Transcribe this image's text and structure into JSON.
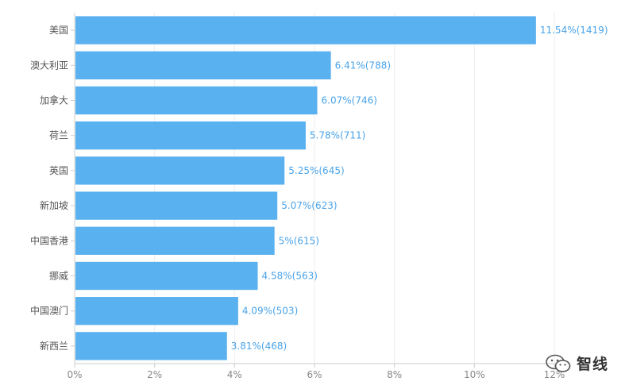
{
  "chart_data": {
    "type": "bar",
    "orientation": "horizontal",
    "categories": [
      "美国",
      "澳大利亚",
      "加拿大",
      "荷兰",
      "英国",
      "新加坡",
      "中国香港",
      "挪威",
      "中国澳门",
      "新西兰"
    ],
    "values": [
      11.54,
      6.41,
      6.07,
      5.78,
      5.25,
      5.07,
      5,
      4.58,
      4.09,
      3.81
    ],
    "counts": [
      1419,
      788,
      746,
      711,
      645,
      623,
      615,
      563,
      503,
      468
    ],
    "data_labels": [
      "11.54%(1419)",
      "6.41%(788)",
      "6.07%(746)",
      "5.78%(711)",
      "5.25%(645)",
      "5.07%(623)",
      "5%(615)",
      "4.58%(563)",
      "4.09%(503)",
      "3.81%(468)"
    ],
    "x_ticks": [
      "0%",
      "2%",
      "4%",
      "6%",
      "8%",
      "10%",
      "12%"
    ],
    "xlim": [
      0,
      12
    ],
    "grid": true,
    "bar_color": "#5ab1ef",
    "label_color": "#4aa3e8",
    "title": "",
    "xlabel": "",
    "ylabel": ""
  },
  "watermark": {
    "text": "智线",
    "icon": "wechat-icon"
  }
}
